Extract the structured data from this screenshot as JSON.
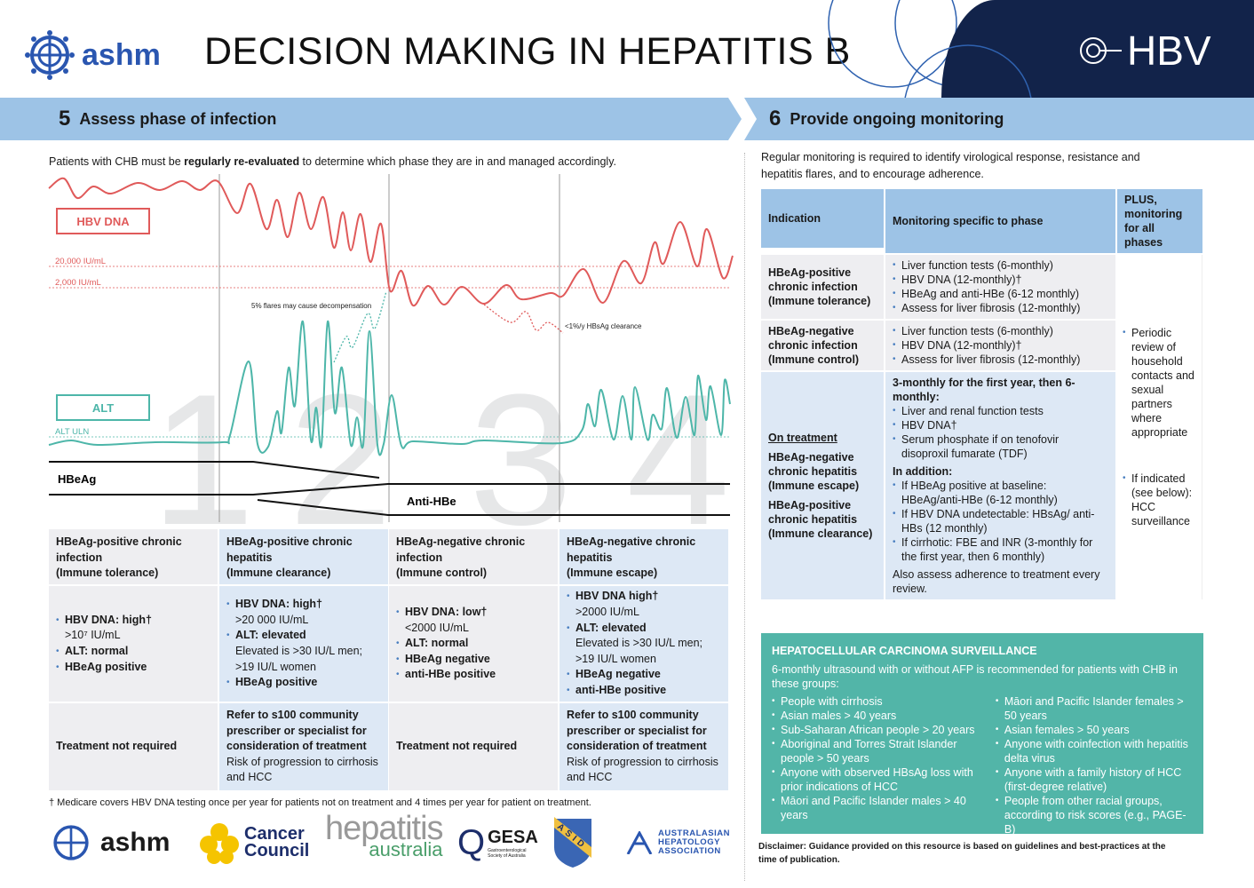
{
  "header": {
    "logo_text": "ashm",
    "title": "DECISION MAKING IN HEPATITIS B",
    "brand": "HBV"
  },
  "section5": {
    "number": "5",
    "title": "Assess phase of infection",
    "intro_pre": "Patients with CHB must be ",
    "intro_bold": "regularly re-evaluated",
    "intro_post": " to determine which phase they are in and managed accordingly.",
    "diagram": {
      "hbv_label": "HBV DNA",
      "alt_label": "ALT",
      "line_20000": "20,000 IU/mL",
      "line_2000": "2,000 IU/mL",
      "alt_uln": "ALT ULN",
      "flare_note": "5% flares may cause decompensation",
      "clearance_note": "<1%/y HBsAg clearance",
      "hbeag": "HBeAg",
      "antihbe": "Anti-HBe",
      "phases": [
        "1",
        "2",
        "3",
        "4"
      ]
    },
    "phases": [
      {
        "title": "HBeAg-positive chronic infection",
        "sub": "(Immune tolerance)",
        "items": [
          {
            "b": "HBV DNA: high†",
            "t": ">10⁷ IU/mL"
          },
          {
            "b": "ALT: normal",
            "t": ""
          },
          {
            "b": "HBeAg positive",
            "t": ""
          }
        ],
        "treat_b": "Treatment not required",
        "treat_t": ""
      },
      {
        "title": "HBeAg-positive chronic hepatitis",
        "sub": "(Immune clearance)",
        "items": [
          {
            "b": "HBV DNA: high†",
            "t": ">20 000 IU/mL"
          },
          {
            "b": "ALT: elevated",
            "t": "Elevated is >30 IU/L men; >19 IU/L women"
          },
          {
            "b": "HBeAg positive",
            "t": ""
          }
        ],
        "treat_b": "Refer to s100 community prescriber or specialist for consideration of treatment",
        "treat_t": "Risk of progression to cirrhosis and HCC"
      },
      {
        "title": "HBeAg-negative chronic infection",
        "sub": "(Immune control)",
        "items": [
          {
            "b": "HBV DNA: low†",
            "t": "<2000 IU/mL"
          },
          {
            "b": "ALT: normal",
            "t": ""
          },
          {
            "b": "HBeAg negative",
            "t": ""
          },
          {
            "b": "anti-HBe positive",
            "t": ""
          }
        ],
        "treat_b": "Treatment not required",
        "treat_t": ""
      },
      {
        "title": "HBeAg-negative chronic hepatitis",
        "sub": "(Immune escape)",
        "items": [
          {
            "b": "HBV DNA high†",
            "t": ">2000 IU/mL"
          },
          {
            "b": "ALT: elevated",
            "t": "Elevated is >30 IU/L men; >19 IU/L women"
          },
          {
            "b": "HBeAg negative",
            "t": ""
          },
          {
            "b": "anti-HBe positive",
            "t": ""
          }
        ],
        "treat_b": "Refer to s100 community prescriber or specialist for consideration of treatment",
        "treat_t": "Risk of progression to cirrhosis and HCC"
      }
    ],
    "footnote": "† Medicare covers HBV DNA testing once per year for patients not on treatment and 4 times per year for patient on treatment."
  },
  "section6": {
    "number": "6",
    "title": "Provide ongoing monitoring",
    "intro": "Regular monitoring is required to identify virological response, resistance and hepatitis flares, and to encourage adherence.",
    "headers": [
      "Indication",
      "Monitoring specific to phase",
      "PLUS, monitoring for all phases"
    ],
    "row1": {
      "ind": "HBeAg-positive chronic infection (Immune tolerance)",
      "items": [
        "Liver function tests (6-monthly)",
        "HBV DNA (12-monthly)†",
        "HBeAg and anti-HBe (6-12 monthly)",
        "Assess for liver fibrosis (12-monthly)"
      ]
    },
    "row2": {
      "ind": "HBeAg-negative chronic infection (Immune control)",
      "items": [
        "Liver function tests (6-monthly)",
        "HBV DNA (12-monthly)†",
        "Assess for liver fibrosis (12-monthly)"
      ]
    },
    "row3": {
      "underline": "On treatment",
      "ind1": "HBeAg-negative chronic hepatitis (Immune escape)",
      "ind2": "HBeAg-positive chronic hepatitis (Immune clearance)",
      "lead": "3-monthly for the first year, then 6-monthly:",
      "items": [
        "Liver and renal function tests",
        "HBV DNA†",
        "Serum phosphate if on tenofovir disoproxil fumarate (TDF)"
      ],
      "addition": "In addition:",
      "add_items": [
        "If HBeAg positive at baseline: HBeAg/anti-HBe (6-12 monthly)",
        "If HBV DNA undetectable: HBsAg/ anti-HBs (12 monthly)",
        "If cirrhotic: FBE and INR (3-monthly for the first year, then 6 monthly)"
      ],
      "adherence": "Also assess adherence to treatment every review."
    },
    "all_phases": [
      "Periodic review of household contacts and sexual partners where appropriate",
      "If indicated (see below): HCC surveillance"
    ]
  },
  "hcc": {
    "title": "HEPATOCELLULAR CARCINOMA SURVEILLANCE",
    "intro": "6-monthly ultrasound with or without AFP is recommended for patients with CHB in these groups:",
    "left": [
      "People with cirrhosis",
      "Asian males > 40 years",
      "Sub-Saharan African people > 20 years",
      "Aboriginal and Torres Strait Islander people > 50 years",
      "Anyone with observed HBsAg loss with prior indications of HCC",
      "Māori and Pacific Islander males > 40 years"
    ],
    "right": [
      "Māori  and Pacific Islander females > 50 years",
      "Asian females > 50 years",
      "Anyone with coinfection with hepatitis delta virus",
      "Anyone with a family history of HCC (first-degree relative)",
      "People from other racial groups, according to risk scores (e.g., PAGE-B)"
    ]
  },
  "disclaimer": "Disclaimer: Guidance provided on this resource is based on guidelines and best-practices at the time of publication.",
  "logos": {
    "ashm": "ashm",
    "cancer1": "Cancer",
    "cancer2": "Council",
    "hep1": "hepatitis",
    "hep2": "australia",
    "gesa": "GESA",
    "gesa_sub": "Gastroenterological Society of Australia",
    "asid": "ASID",
    "aha": "AUSTRALASIAN HEPATOLOGY ASSOCIATION"
  },
  "colors": {
    "navy": "#12234a",
    "bar": "#9dc3e6",
    "hbv": "#e05a5a",
    "alt": "#4db6a9",
    "hcc": "#52b5a8"
  }
}
